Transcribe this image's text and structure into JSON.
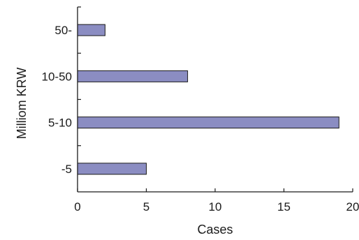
{
  "chart_data": {
    "type": "bar",
    "orientation": "horizontal",
    "categories": [
      "-5",
      "5-10",
      "10-50",
      "50-"
    ],
    "values": [
      5,
      19,
      8,
      2
    ],
    "xlabel": "Cases",
    "ylabel": "Milliom KRW",
    "xlim": [
      0,
      20
    ],
    "xticks": [
      "0",
      "5",
      "10",
      "15",
      "20"
    ],
    "grid": false,
    "bar_color": "#8B8DC2",
    "bar_stroke": "#1a1a1a"
  }
}
